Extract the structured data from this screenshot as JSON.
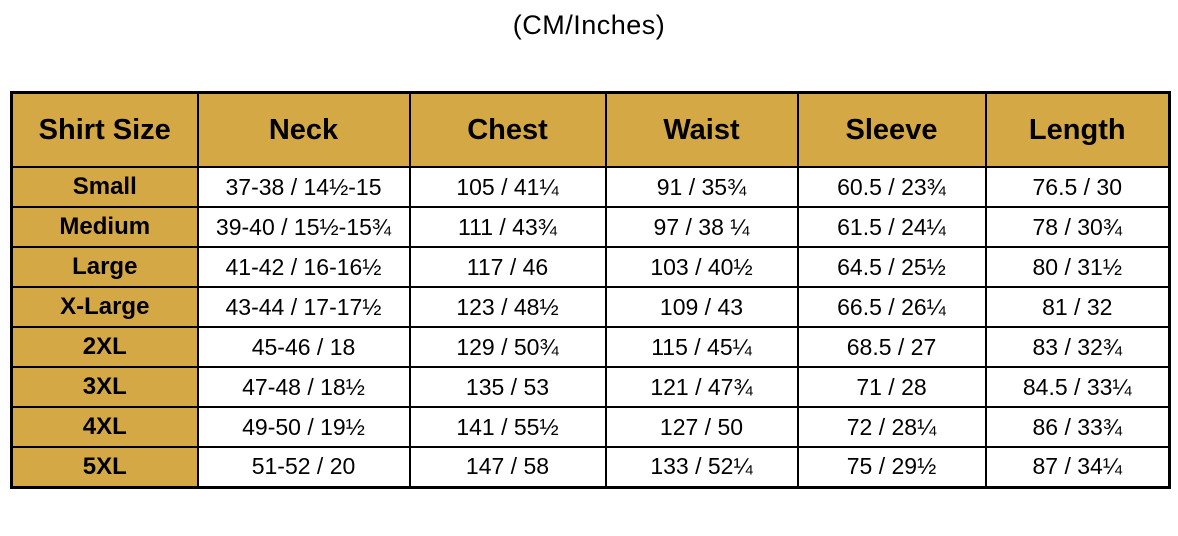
{
  "title": "(CM/Inches)",
  "colors": {
    "header_background": "#D3A845",
    "border": "#000000",
    "text": "#000000",
    "page_background": "#FFFFFF"
  },
  "chart_data": {
    "type": "table",
    "title": "(CM/Inches)",
    "columns": [
      "Shirt Size",
      "Neck",
      "Chest",
      "Waist",
      "Sleeve",
      "Length"
    ],
    "rows": [
      [
        "Small",
        "37-38 / 14½-15",
        "105 / 41¼",
        "91 / 35¾",
        "60.5 / 23¾",
        "76.5 / 30"
      ],
      [
        "Medium",
        "39-40 / 15½-15¾",
        "111 / 43¾",
        "97 / 38 ¼",
        "61.5 / 24¼",
        "78 / 30¾"
      ],
      [
        "Large",
        "41-42 / 16-16½",
        "117 / 46",
        "103 / 40½",
        "64.5 / 25½",
        "80 / 31½"
      ],
      [
        "X-Large",
        "43-44 / 17-17½",
        "123 / 48½",
        "109 / 43",
        "66.5 / 26¼",
        "81 / 32"
      ],
      [
        "2XL",
        "45-46 / 18",
        "129 / 50¾",
        "115 / 45¼",
        "68.5 / 27",
        "83 / 32¾"
      ],
      [
        "3XL",
        "47-48 / 18½",
        "135 / 53",
        "121 / 47¾",
        "71 / 28",
        "84.5 / 33¼"
      ],
      [
        "4XL",
        "49-50 / 19½",
        "141 / 55½",
        "127 / 50",
        "72 / 28¼",
        "86 / 33¾"
      ],
      [
        "5XL",
        "51-52 / 20",
        "147 / 58",
        "133 / 52¼",
        "75 / 29½",
        "87 / 34¼"
      ]
    ],
    "layout": {
      "header_row_highlighted": true,
      "first_column_highlighted": true,
      "grid": true,
      "units_note": "each cell shows centimeters / inches"
    }
  }
}
